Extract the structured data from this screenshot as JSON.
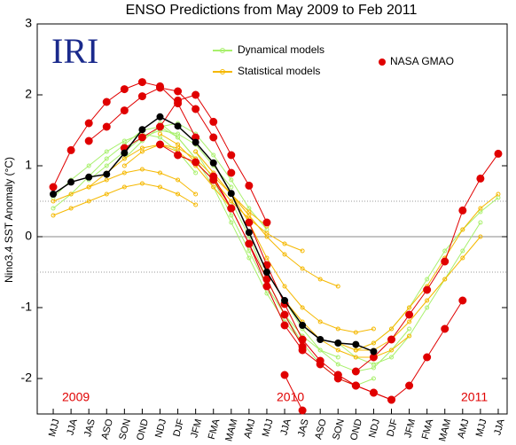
{
  "chart_data": {
    "type": "line",
    "title": "ENSO Predictions from May 2009 to Feb 2011",
    "y_label": "Nino3.4 SST Anomaly (°C)",
    "logo": "IRI",
    "annotations": [
      "2009",
      "2010",
      "2011"
    ],
    "categories": [
      "MJJ",
      "JJA",
      "JAS",
      "ASO",
      "SON",
      "OND",
      "NDJ",
      "DJF",
      "JFM",
      "FMA",
      "MAM",
      "AMJ",
      "MJJ",
      "JJA",
      "JAS",
      "ASO",
      "SON",
      "OND",
      "NDJ",
      "DJF",
      "JFM",
      "FMA",
      "MAM",
      "AMJ",
      "MJJ",
      "JJA"
    ],
    "ylim": [
      -2.5,
      3
    ],
    "yticks": [
      -2,
      -1,
      0,
      1,
      2,
      3
    ],
    "ref_lines": [
      -0.5,
      0.5
    ],
    "series": [
      {
        "name": "Dynamical models",
        "color": "#a8f06c",
        "runs": [
          [
            0.55,
            0.8,
            1.0,
            1.2,
            1.35,
            1.45,
            1.4,
            1.2,
            0.9,
            null,
            null,
            null,
            null,
            null,
            null,
            null,
            null,
            null,
            null,
            null,
            null,
            null,
            null,
            null,
            null,
            null
          ],
          [
            0.4,
            0.6,
            0.85,
            1.1,
            1.3,
            1.5,
            1.55,
            1.4,
            1.1,
            null,
            null,
            null,
            null,
            null,
            null,
            null,
            null,
            null,
            null,
            null,
            null,
            null,
            null,
            null,
            null,
            null
          ],
          [
            null,
            null,
            0.8,
            1.0,
            1.2,
            1.4,
            1.5,
            1.45,
            1.3,
            1.0,
            0.7,
            null,
            null,
            null,
            null,
            null,
            null,
            null,
            null,
            null,
            null,
            null,
            null,
            null,
            null,
            null
          ],
          [
            null,
            null,
            null,
            null,
            1.1,
            1.35,
            1.55,
            1.6,
            1.45,
            1.15,
            0.8,
            0.4,
            0.1,
            null,
            null,
            null,
            null,
            null,
            null,
            null,
            null,
            null,
            null,
            null,
            null,
            null
          ],
          [
            null,
            null,
            null,
            null,
            null,
            null,
            1.6,
            1.4,
            1.1,
            0.7,
            0.2,
            -0.3,
            -0.8,
            -1.2,
            -1.5,
            null,
            null,
            null,
            null,
            null,
            null,
            null,
            null,
            null,
            null,
            null
          ],
          [
            null,
            null,
            null,
            null,
            null,
            null,
            null,
            null,
            1.2,
            0.8,
            0.3,
            -0.2,
            -0.7,
            -1.1,
            -1.4,
            -1.6,
            -1.7,
            null,
            null,
            null,
            null,
            null,
            null,
            null,
            null,
            null
          ],
          [
            null,
            null,
            null,
            null,
            null,
            null,
            null,
            null,
            null,
            null,
            0.5,
            0.0,
            -0.6,
            -1.1,
            -1.5,
            -1.8,
            -2.0,
            -2.1,
            -2.0,
            null,
            null,
            null,
            null,
            null,
            null,
            null
          ],
          [
            null,
            null,
            null,
            null,
            null,
            null,
            null,
            null,
            null,
            null,
            null,
            null,
            null,
            -0.9,
            -1.3,
            -1.6,
            -1.8,
            -1.9,
            -1.85,
            -1.6,
            -1.3,
            null,
            null,
            null,
            null,
            null
          ],
          [
            null,
            null,
            null,
            null,
            null,
            null,
            null,
            null,
            null,
            null,
            null,
            null,
            null,
            null,
            null,
            null,
            -1.5,
            -1.7,
            -1.8,
            -1.7,
            -1.4,
            -1.0,
            -0.6,
            -0.2,
            0.2,
            null
          ],
          [
            null,
            null,
            null,
            null,
            null,
            null,
            null,
            null,
            null,
            null,
            null,
            null,
            null,
            null,
            null,
            null,
            null,
            -1.6,
            -1.5,
            -1.3,
            -1.0,
            -0.6,
            -0.2,
            0.1,
            0.35,
            0.55
          ]
        ]
      },
      {
        "name": "Statistical models",
        "color": "#f5b800",
        "runs": [
          [
            0.5,
            0.6,
            0.7,
            0.8,
            0.9,
            0.95,
            0.9,
            0.8,
            0.6,
            null,
            null,
            null,
            null,
            null,
            null,
            null,
            null,
            null,
            null,
            null,
            null,
            null,
            null,
            null,
            null,
            null
          ],
          [
            0.3,
            0.4,
            0.5,
            0.6,
            0.7,
            0.75,
            0.7,
            0.6,
            0.45,
            null,
            null,
            null,
            null,
            null,
            null,
            null,
            null,
            null,
            null,
            null,
            null,
            null,
            null,
            null,
            null,
            null
          ],
          [
            null,
            null,
            0.7,
            0.9,
            1.1,
            1.25,
            1.3,
            1.2,
            1.0,
            0.7,
            0.4,
            null,
            null,
            null,
            null,
            null,
            null,
            null,
            null,
            null,
            null,
            null,
            null,
            null,
            null,
            null
          ],
          [
            null,
            null,
            null,
            null,
            1.0,
            1.2,
            1.3,
            1.25,
            1.1,
            0.85,
            0.6,
            0.35,
            0.15,
            null,
            null,
            null,
            null,
            null,
            null,
            null,
            null,
            null,
            null,
            null,
            null,
            null
          ],
          [
            null,
            null,
            null,
            null,
            null,
            null,
            1.45,
            1.3,
            1.05,
            0.8,
            0.5,
            0.25,
            0.05,
            -0.1,
            -0.2,
            null,
            null,
            null,
            null,
            null,
            null,
            null,
            null,
            null,
            null,
            null
          ],
          [
            null,
            null,
            null,
            null,
            null,
            null,
            null,
            null,
            1.2,
            0.9,
            0.6,
            0.3,
            0.0,
            -0.25,
            -0.45,
            -0.6,
            -0.7,
            null,
            null,
            null,
            null,
            null,
            null,
            null,
            null,
            null
          ],
          [
            null,
            null,
            null,
            null,
            null,
            null,
            null,
            null,
            null,
            null,
            0.6,
            0.2,
            -0.3,
            -0.7,
            -1.0,
            -1.2,
            -1.3,
            -1.35,
            -1.3,
            null,
            null,
            null,
            null,
            null,
            null,
            null
          ],
          [
            null,
            null,
            null,
            null,
            null,
            null,
            null,
            null,
            null,
            null,
            null,
            null,
            null,
            -0.9,
            -1.2,
            -1.45,
            -1.6,
            -1.7,
            -1.7,
            -1.6,
            -1.4,
            null,
            null,
            null,
            null,
            null
          ],
          [
            null,
            null,
            null,
            null,
            null,
            null,
            null,
            null,
            null,
            null,
            null,
            null,
            null,
            null,
            null,
            null,
            -1.5,
            -1.6,
            -1.6,
            -1.45,
            -1.2,
            -0.9,
            -0.6,
            -0.3,
            0.0,
            null
          ],
          [
            null,
            null,
            null,
            null,
            null,
            null,
            null,
            null,
            null,
            null,
            null,
            null,
            null,
            null,
            null,
            null,
            null,
            -1.6,
            -1.5,
            -1.3,
            -1.0,
            -0.7,
            -0.3,
            0.1,
            0.4,
            0.6
          ]
        ]
      },
      {
        "name": "NASA GMAO",
        "color": "#e00000",
        "runs": [
          [
            0.7,
            1.22,
            1.6,
            1.9,
            2.08,
            2.18,
            2.12,
            1.88,
            1.4,
            null,
            null,
            null,
            null,
            null,
            null,
            null,
            null,
            null,
            null,
            null,
            null,
            null,
            null,
            null,
            null,
            null
          ],
          [
            null,
            null,
            1.35,
            1.55,
            1.78,
            1.98,
            2.1,
            2.05,
            1.8,
            1.4,
            0.9,
            null,
            null,
            null,
            null,
            null,
            null,
            null,
            null,
            null,
            null,
            null,
            null,
            null,
            null,
            null
          ],
          [
            null,
            null,
            null,
            null,
            1.25,
            1.4,
            1.55,
            1.92,
            2.0,
            1.62,
            1.15,
            0.72,
            0.2,
            null,
            null,
            null,
            null,
            null,
            null,
            null,
            null,
            null,
            null,
            null,
            null,
            null
          ],
          [
            null,
            null,
            null,
            null,
            null,
            null,
            1.3,
            1.15,
            1.05,
            0.8,
            0.4,
            -0.1,
            -0.6,
            -1.1,
            -1.55,
            null,
            null,
            null,
            null,
            null,
            null,
            null,
            null,
            null,
            null,
            null
          ],
          [
            null,
            null,
            null,
            null,
            null,
            null,
            null,
            null,
            null,
            0.85,
            0.4,
            -0.1,
            -0.7,
            -1.25,
            -1.6,
            -1.8,
            -2.0,
            -2.1,
            null,
            null,
            null,
            null,
            null,
            null,
            null,
            null
          ],
          [
            null,
            null,
            null,
            null,
            null,
            null,
            null,
            null,
            null,
            null,
            null,
            0.2,
            -0.4,
            -0.95,
            -1.45,
            -1.75,
            -1.95,
            -2.1,
            -2.2,
            -2.3,
            null,
            null,
            null,
            null,
            null,
            null
          ],
          [
            null,
            null,
            null,
            null,
            null,
            null,
            null,
            null,
            null,
            null,
            null,
            null,
            null,
            -1.95,
            -2.45,
            null,
            null,
            null,
            null,
            null,
            null,
            null,
            null,
            null,
            null,
            null
          ],
          [
            null,
            null,
            null,
            null,
            null,
            null,
            null,
            null,
            null,
            null,
            null,
            null,
            null,
            null,
            null,
            null,
            -1.95,
            -2.1,
            -2.2,
            -2.3,
            -2.1,
            -1.7,
            -1.3,
            -0.9,
            null,
            null
          ],
          [
            null,
            null,
            null,
            null,
            null,
            null,
            null,
            null,
            null,
            null,
            null,
            null,
            null,
            null,
            null,
            null,
            null,
            -1.9,
            -1.7,
            -1.45,
            -1.1,
            -0.75,
            -0.35,
            0.37,
            0.82,
            1.17
          ]
        ]
      },
      {
        "color": "#000000",
        "runs": [
          [
            0.6,
            0.77,
            0.84,
            0.88,
            1.18,
            1.51,
            1.69,
            1.56,
            1.33,
            1.04,
            0.61,
            0.06,
            -0.5,
            -0.9,
            -1.25,
            -1.45,
            -1.5,
            -1.52,
            -1.62,
            null,
            null,
            null,
            null,
            null,
            null,
            null
          ]
        ]
      }
    ]
  }
}
